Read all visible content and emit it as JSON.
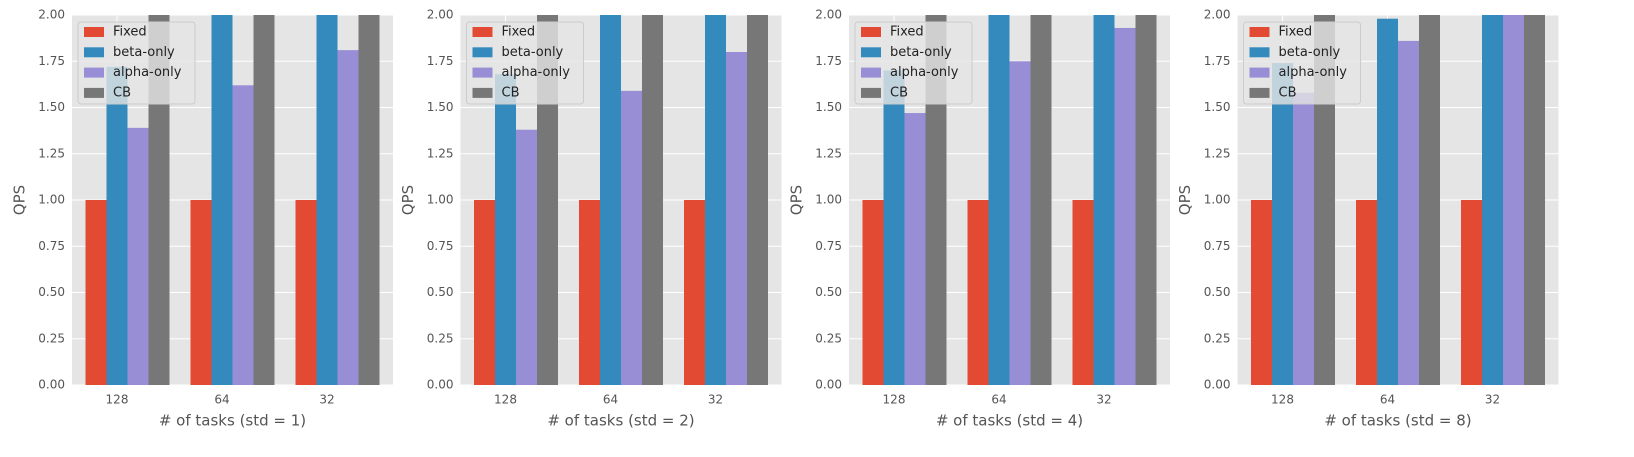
{
  "chart_data": [
    {
      "type": "bar",
      "xlabel": "# of tasks (std = 1)",
      "ylabel": "QPS",
      "categories": [
        "128",
        "64",
        "32"
      ],
      "series": [
        {
          "name": "Fixed",
          "color": "#E24A33",
          "values": [
            1,
            1,
            1
          ]
        },
        {
          "name": "beta-only",
          "color": "#348ABD",
          "values": [
            1.72,
            2,
            2
          ]
        },
        {
          "name": "alpha-only",
          "color": "#988ED5",
          "values": [
            1.39,
            1.62,
            1.81
          ]
        },
        {
          "name": "CB",
          "color": "#777777",
          "values": [
            2,
            2,
            2
          ]
        }
      ],
      "ylim": [
        0,
        2
      ],
      "yticks": [
        {
          "value": 0,
          "label": "0.00"
        },
        {
          "value": 0.25,
          "label": "0.25"
        },
        {
          "value": 0.5,
          "label": "0.50"
        },
        {
          "value": 0.75,
          "label": "0.75"
        },
        {
          "value": 1,
          "label": "1.00"
        },
        {
          "value": 1.25,
          "label": "1.25"
        },
        {
          "value": 1.5,
          "label": "1.50"
        },
        {
          "value": 1.75,
          "label": "1.75"
        },
        {
          "value": 2,
          "label": "2.00"
        }
      ],
      "grid": true,
      "legend": "upper left"
    },
    {
      "type": "bar",
      "xlabel": "# of tasks (std = 2)",
      "ylabel": "QPS",
      "categories": [
        "128",
        "64",
        "32"
      ],
      "series": [
        {
          "name": "Fixed",
          "color": "#E24A33",
          "values": [
            1,
            1,
            1
          ]
        },
        {
          "name": "beta-only",
          "color": "#348ABD",
          "values": [
            1.68,
            2,
            2
          ]
        },
        {
          "name": "alpha-only",
          "color": "#988ED5",
          "values": [
            1.38,
            1.59,
            1.8
          ]
        },
        {
          "name": "CB",
          "color": "#777777",
          "values": [
            2,
            2,
            2
          ]
        }
      ],
      "ylim": [
        0,
        2
      ],
      "yticks": [
        {
          "value": 0,
          "label": "0.00"
        },
        {
          "value": 0.25,
          "label": "0.25"
        },
        {
          "value": 0.5,
          "label": "0.50"
        },
        {
          "value": 0.75,
          "label": "0.75"
        },
        {
          "value": 1,
          "label": "1.00"
        },
        {
          "value": 1.25,
          "label": "1.25"
        },
        {
          "value": 1.5,
          "label": "1.50"
        },
        {
          "value": 1.75,
          "label": "1.75"
        },
        {
          "value": 2,
          "label": "2.00"
        }
      ],
      "grid": true,
      "legend": "upper left"
    },
    {
      "type": "bar",
      "xlabel": "# of tasks (std = 4)",
      "ylabel": "QPS",
      "categories": [
        "128",
        "64",
        "32"
      ],
      "series": [
        {
          "name": "Fixed",
          "color": "#E24A33",
          "values": [
            1,
            1,
            1
          ]
        },
        {
          "name": "beta-only",
          "color": "#348ABD",
          "values": [
            1.7,
            2,
            2
          ]
        },
        {
          "name": "alpha-only",
          "color": "#988ED5",
          "values": [
            1.47,
            1.75,
            1.93
          ]
        },
        {
          "name": "CB",
          "color": "#777777",
          "values": [
            2,
            2,
            2
          ]
        }
      ],
      "ylim": [
        0,
        2
      ],
      "yticks": [
        {
          "value": 0,
          "label": "0.00"
        },
        {
          "value": 0.25,
          "label": "0.25"
        },
        {
          "value": 0.5,
          "label": "0.50"
        },
        {
          "value": 0.75,
          "label": "0.75"
        },
        {
          "value": 1,
          "label": "1.00"
        },
        {
          "value": 1.25,
          "label": "1.25"
        },
        {
          "value": 1.5,
          "label": "1.50"
        },
        {
          "value": 1.75,
          "label": "1.75"
        },
        {
          "value": 2,
          "label": "2.00"
        }
      ],
      "grid": true,
      "legend": "upper left"
    },
    {
      "type": "bar",
      "xlabel": "# of tasks (std = 8)",
      "ylabel": "QPS",
      "categories": [
        "128",
        "64",
        "32"
      ],
      "series": [
        {
          "name": "Fixed",
          "color": "#E24A33",
          "values": [
            1,
            1,
            1
          ]
        },
        {
          "name": "beta-only",
          "color": "#348ABD",
          "values": [
            1.74,
            1.98,
            2
          ]
        },
        {
          "name": "alpha-only",
          "color": "#988ED5",
          "values": [
            1.58,
            1.86,
            2
          ]
        },
        {
          "name": "CB",
          "color": "#777777",
          "values": [
            2,
            2,
            2
          ]
        }
      ],
      "ylim": [
        0,
        2
      ],
      "yticks": [
        {
          "value": 0,
          "label": "0.00"
        },
        {
          "value": 0.25,
          "label": "0.25"
        },
        {
          "value": 0.5,
          "label": "0.50"
        },
        {
          "value": 0.75,
          "label": "0.75"
        },
        {
          "value": 1,
          "label": "1.00"
        },
        {
          "value": 1.25,
          "label": "1.25"
        },
        {
          "value": 1.5,
          "label": "1.50"
        },
        {
          "value": 1.75,
          "label": "1.75"
        },
        {
          "value": 2,
          "label": "2.00"
        }
      ],
      "grid": true,
      "legend": "upper left"
    }
  ]
}
